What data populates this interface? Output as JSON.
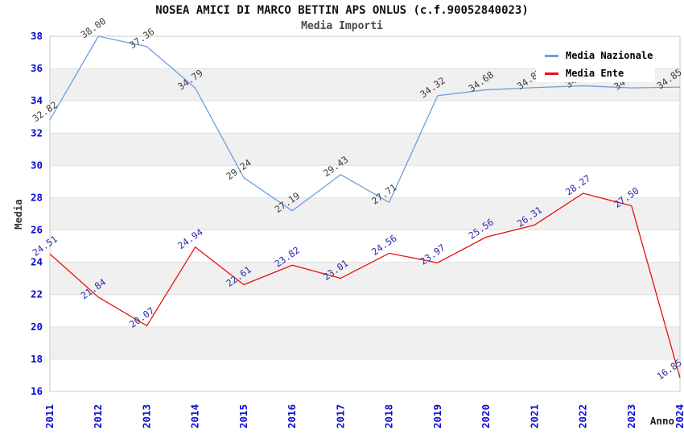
{
  "header": {
    "title": "NOSEA AMICI DI MARCO BETTIN APS ONLUS (c.f.90052840023)",
    "subtitle": "Media Importi"
  },
  "legend": {
    "position": "top-right",
    "items": [
      {
        "label": "Media Nazionale",
        "color": "#6ca0dc"
      },
      {
        "label": "Media Ente",
        "color": "#e8100c"
      }
    ]
  },
  "axes": {
    "x_title": "Anno",
    "y_title": "Media",
    "tick_label_color": "#0b0bcf",
    "y_ticks": [
      16,
      18,
      20,
      22,
      24,
      26,
      28,
      30,
      32,
      34,
      36,
      38
    ],
    "x_ticks": [
      "2011",
      "2012",
      "2013",
      "2014",
      "2015",
      "2016",
      "2017",
      "2018",
      "2019",
      "2020",
      "2021",
      "2022",
      "2023",
      "2024"
    ]
  },
  "chart_data": {
    "type": "line",
    "title": "NOSEA AMICI DI MARCO BETTIN APS ONLUS (c.f.90052840023)",
    "subtitle": "Media Importi",
    "xlabel": "Anno",
    "ylabel": "Media",
    "x": [
      2011,
      2012,
      2013,
      2014,
      2015,
      2016,
      2017,
      2018,
      2019,
      2020,
      2021,
      2022,
      2023,
      2024
    ],
    "ylim": [
      16,
      38
    ],
    "ytick_step": 2,
    "grid": "horizontal-bands",
    "legend_position": "top-right",
    "point_label_decimals": 2,
    "series": [
      {
        "name": "Media Nazionale",
        "color": "#6ca0dc",
        "label_color": "#3c3c3c",
        "values": [
          32.82,
          38.0,
          37.36,
          34.79,
          29.24,
          27.19,
          29.43,
          27.71,
          34.32,
          34.68,
          34.82,
          34.93,
          34.8,
          34.85
        ],
        "note_occluded_labels": "2022 and 2023 labels hidden behind legend box"
      },
      {
        "name": "Media Ente",
        "color": "#e8100c",
        "label_color": "#2b2ba6",
        "values": [
          24.51,
          21.84,
          20.07,
          24.94,
          22.61,
          23.82,
          23.01,
          24.56,
          23.97,
          25.56,
          26.31,
          28.27,
          27.5,
          16.85
        ]
      }
    ]
  }
}
